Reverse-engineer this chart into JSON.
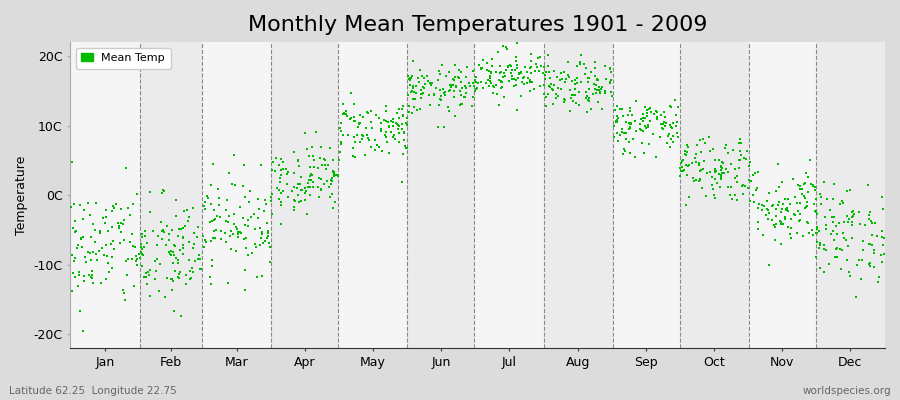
{
  "title": "Monthly Mean Temperatures 1901 - 2009",
  "ylabel": "Temperature",
  "xlabel_labels": [
    "Jan",
    "Feb",
    "Mar",
    "Apr",
    "May",
    "Jun",
    "Jul",
    "Aug",
    "Sep",
    "Oct",
    "Nov",
    "Dec"
  ],
  "ytick_labels": [
    "-20C",
    "-10C",
    "0C",
    "10C",
    "20C"
  ],
  "ytick_positions": [
    -20,
    -10,
    0,
    10,
    20
  ],
  "ylim": [
    -22,
    22
  ],
  "legend_label": "Mean Temp",
  "footer_left": "Latitude 62.25  Longitude 22.75",
  "footer_right": "worldspecies.org",
  "title_fontsize": 16,
  "axis_fontsize": 9,
  "marker": "s",
  "marker_size": 4,
  "dot_color": "#00BB00",
  "bg_color": "#DCDCDC",
  "plot_bg_even": "#EBEBEB",
  "plot_bg_odd": "#F5F5F5",
  "dashed_line_color": "#888888",
  "monthly_means": [
    -7.5,
    -8.5,
    -4.0,
    2.5,
    9.5,
    15.0,
    17.5,
    15.5,
    10.0,
    4.0,
    -1.5,
    -5.5
  ],
  "monthly_stds": [
    4.5,
    4.2,
    3.5,
    2.5,
    2.2,
    1.8,
    1.8,
    1.8,
    2.0,
    2.5,
    3.0,
    3.5
  ],
  "n_years": 109,
  "month_days": [
    31,
    28,
    31,
    30,
    31,
    30,
    31,
    31,
    30,
    31,
    30,
    31
  ],
  "total_days": 365
}
